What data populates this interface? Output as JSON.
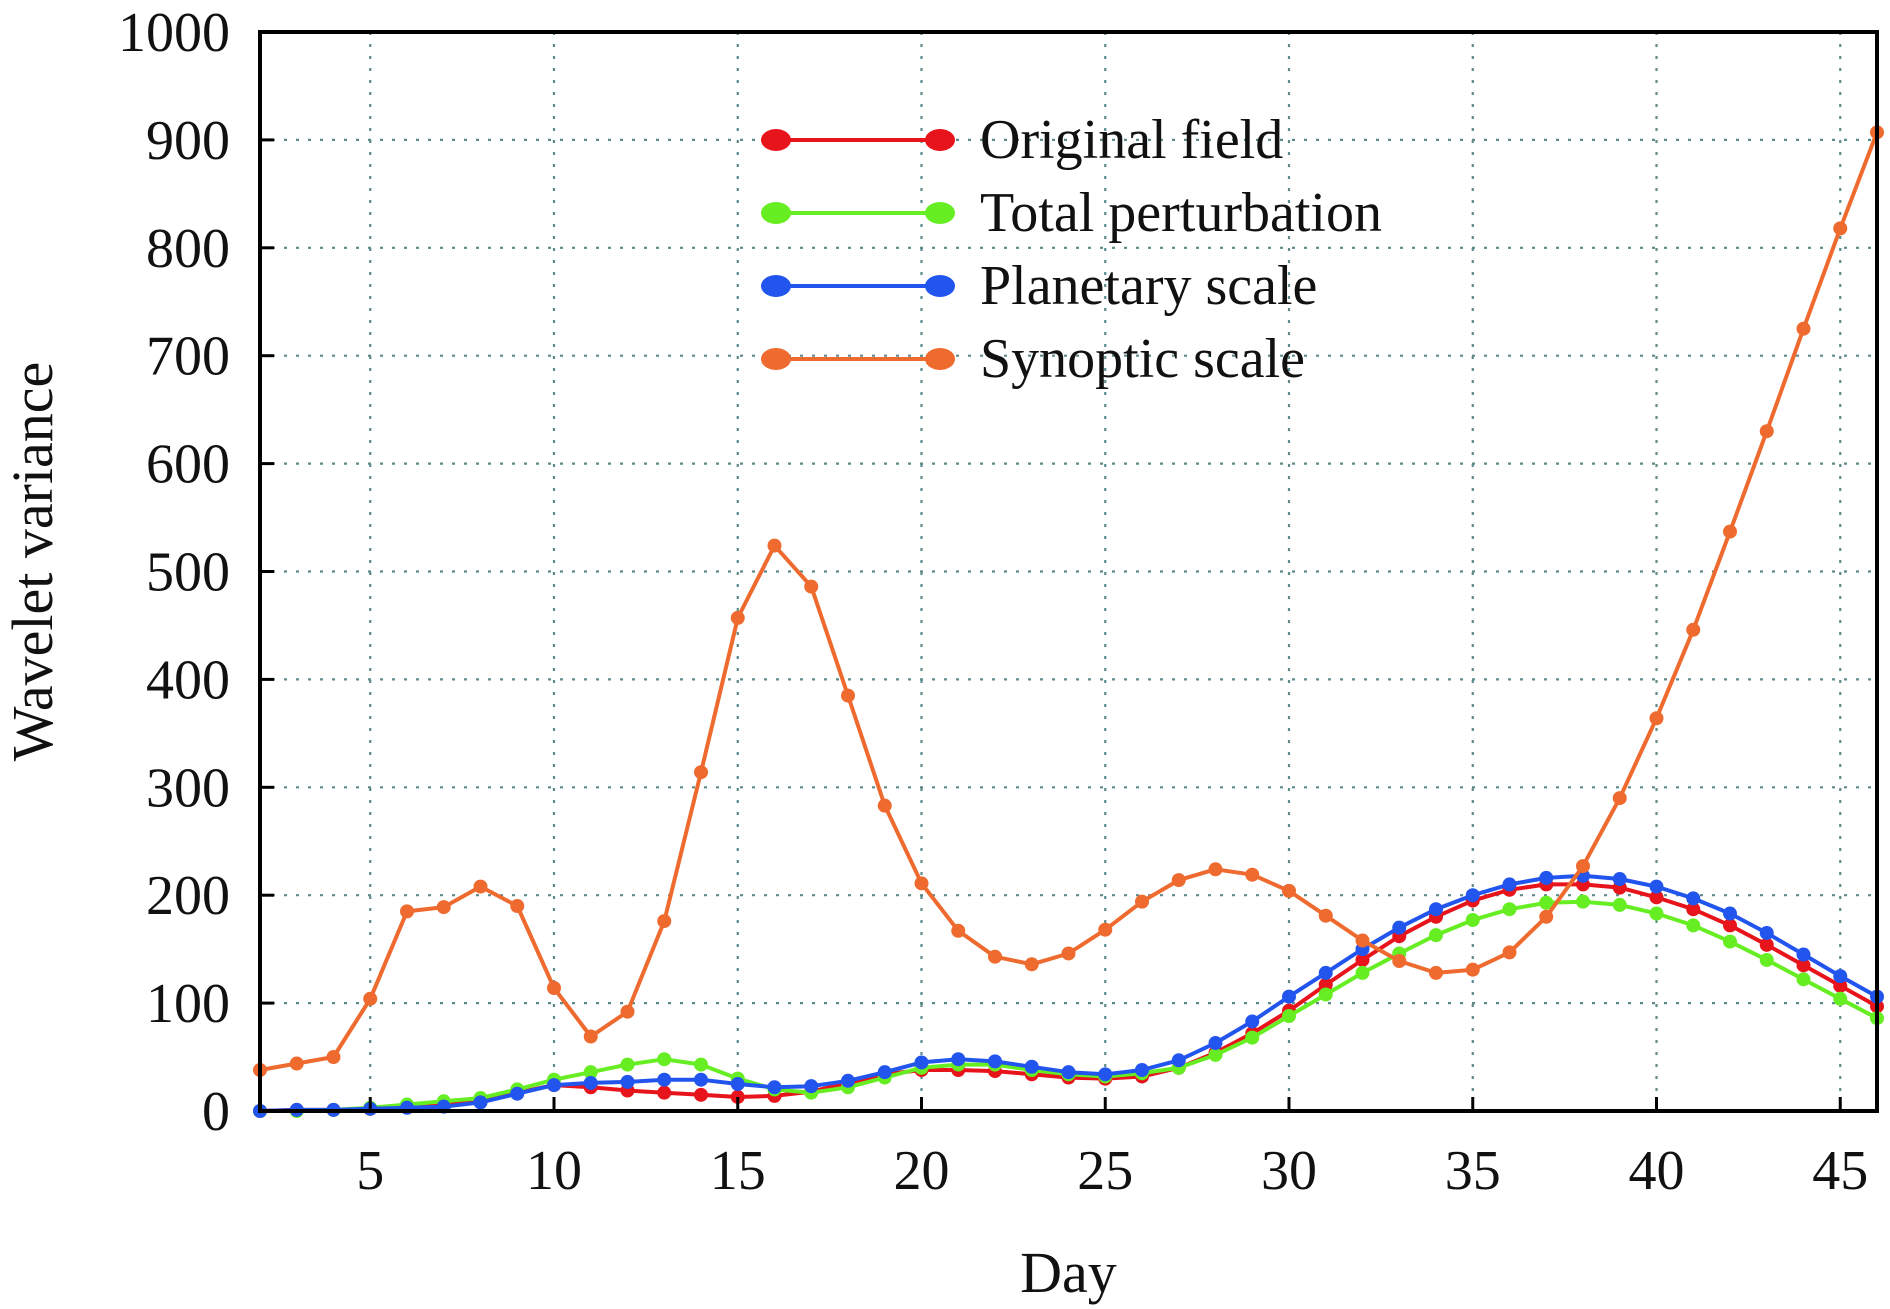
{
  "chart_data": {
    "type": "line",
    "xlabel": "Day",
    "ylabel": "Wavelet variance",
    "xlim": [
      2,
      46
    ],
    "ylim": [
      0,
      1000
    ],
    "xticks": [
      5,
      10,
      15,
      20,
      25,
      30,
      35,
      40,
      45
    ],
    "yticks": [
      0,
      100,
      200,
      300,
      400,
      500,
      600,
      700,
      800,
      900,
      1000
    ],
    "grid": true,
    "legend_position": "top-center",
    "x": [
      2,
      3,
      4,
      5,
      6,
      7,
      8,
      9,
      10,
      11,
      12,
      13,
      14,
      15,
      16,
      17,
      18,
      19,
      20,
      21,
      22,
      23,
      24,
      25,
      26,
      27,
      28,
      29,
      30,
      31,
      32,
      33,
      34,
      35,
      36,
      37,
      38,
      39,
      40,
      41,
      42,
      43,
      44,
      45,
      46
    ],
    "series": [
      {
        "name": "Original field",
        "color": "#e8141b",
        "values": [
          0,
          1,
          1,
          2,
          4,
          5,
          10,
          17,
          24,
          22,
          19,
          17,
          15,
          13,
          14,
          18,
          26,
          34,
          38,
          38,
          37,
          34,
          31,
          30,
          32,
          40,
          54,
          72,
          93,
          117,
          140,
          162,
          180,
          195,
          205,
          210,
          210,
          207,
          198,
          187,
          172,
          154,
          135,
          116,
          97
        ]
      },
      {
        "name": "Total perturbation",
        "color": "#66ee22",
        "values": [
          0,
          0,
          1,
          3,
          6,
          9,
          12,
          20,
          29,
          36,
          43,
          48,
          43,
          30,
          20,
          17,
          22,
          31,
          40,
          43,
          43,
          38,
          34,
          32,
          35,
          40,
          52,
          68,
          88,
          108,
          128,
          146,
          163,
          177,
          187,
          193,
          194,
          191,
          183,
          172,
          157,
          140,
          122,
          104,
          86
        ]
      },
      {
        "name": "Planetary scale",
        "color": "#2255ee",
        "values": [
          0,
          1,
          1,
          2,
          3,
          4,
          8,
          16,
          24,
          26,
          27,
          29,
          29,
          25,
          22,
          23,
          28,
          36,
          45,
          48,
          46,
          41,
          36,
          34,
          38,
          47,
          63,
          83,
          106,
          128,
          150,
          170,
          187,
          200,
          210,
          216,
          218,
          215,
          208,
          197,
          183,
          165,
          145,
          125,
          106
        ]
      },
      {
        "name": "Synoptic scale",
        "color": "#ee6a2e",
        "values": [
          38,
          44,
          50,
          104,
          185,
          189,
          208,
          190,
          114,
          69,
          92,
          176,
          314,
          457,
          524,
          486,
          385,
          283,
          211,
          167,
          143,
          136,
          146,
          168,
          194,
          214,
          224,
          219,
          204,
          181,
          158,
          139,
          128,
          131,
          147,
          180,
          227,
          290,
          364,
          446,
          537,
          630,
          725,
          818,
          907
        ]
      }
    ]
  }
}
